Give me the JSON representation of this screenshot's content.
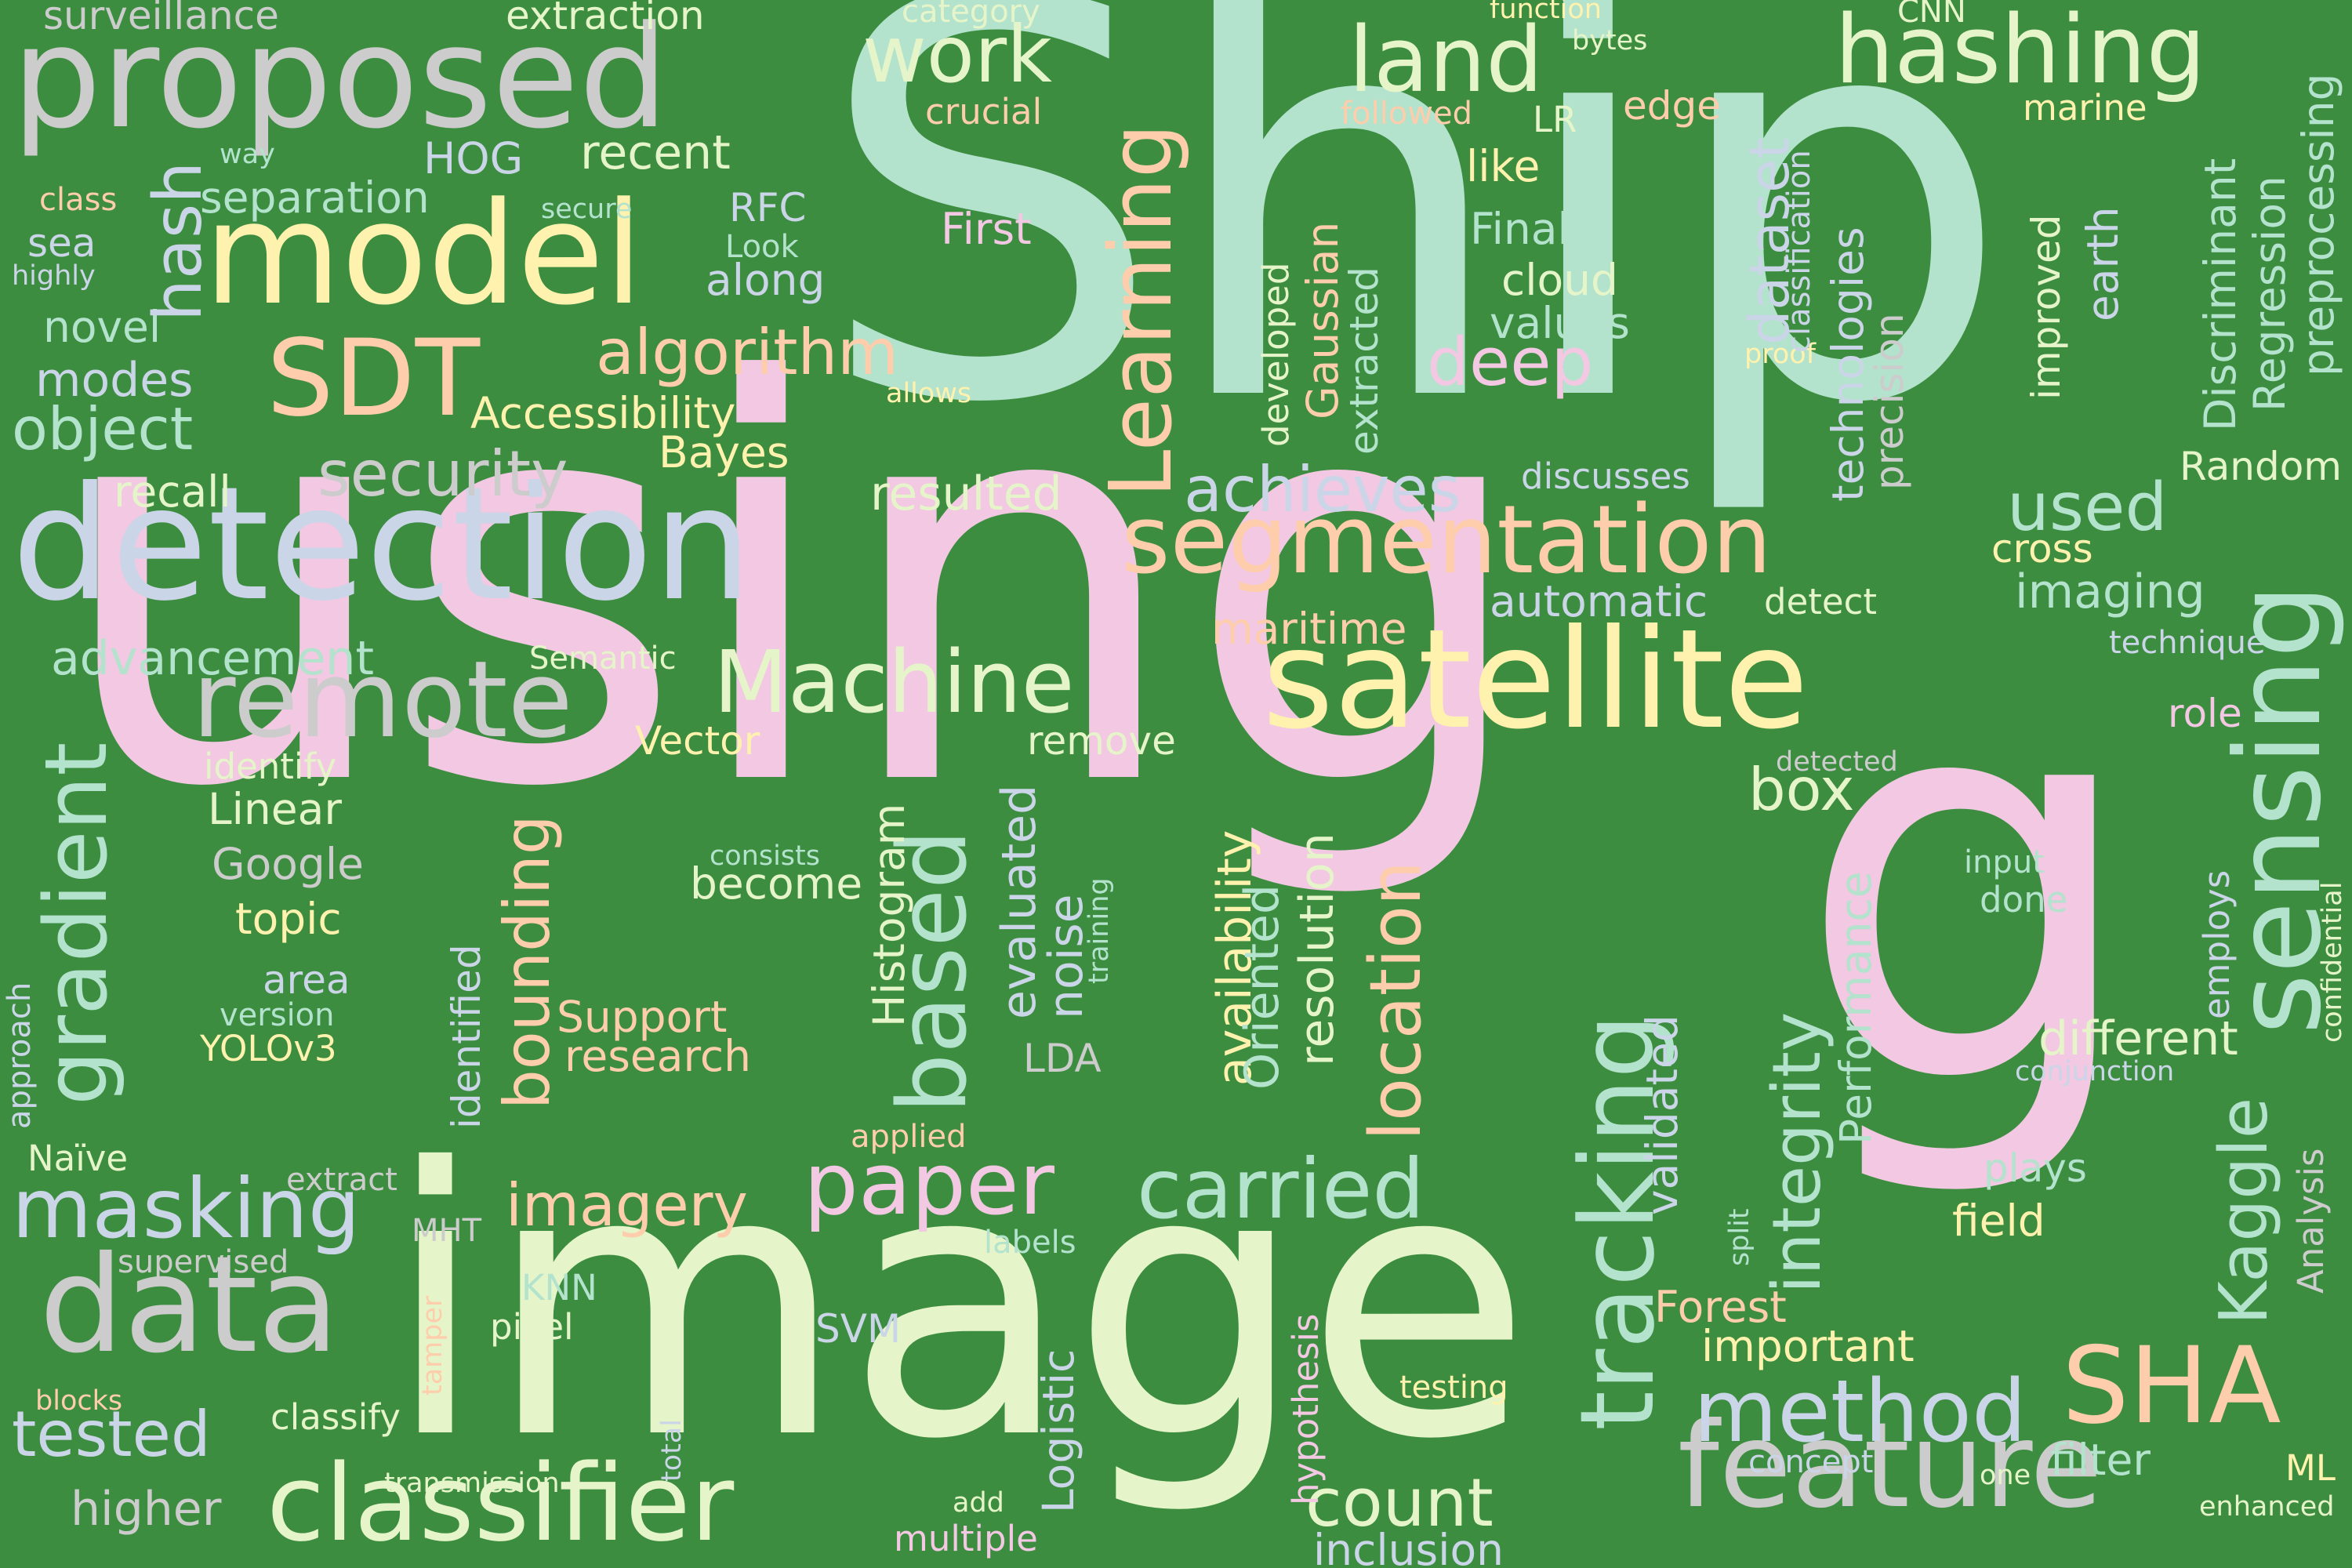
{
  "background_color": "#3d8d40",
  "words": [
    {
      "text": "using",
      "color": "#f2c8e2"
    },
    {
      "text": "Ship",
      "color": "#b3e2cd"
    },
    {
      "text": "image",
      "color": "#e6f5c9"
    },
    {
      "text": "g",
      "color": "#f2c8e2"
    },
    {
      "text": "detection",
      "color": "#cbd5e8"
    },
    {
      "text": "proposed",
      "color": "#cccccc"
    },
    {
      "text": "model",
      "color": "#fff2ae"
    },
    {
      "text": "satellite",
      "color": "#fff2ae"
    },
    {
      "text": "feature",
      "color": "#cccccc"
    },
    {
      "text": "data",
      "color": "#cccccc"
    },
    {
      "text": "tracking",
      "color": "#b3e2cd"
    },
    {
      "text": "segmentation",
      "color": "#fdcdac"
    },
    {
      "text": "remote",
      "color": "#cccccc"
    },
    {
      "text": "sensing",
      "color": "#b3e2cd"
    },
    {
      "text": "classifier",
      "color": "#e6f5c9"
    },
    {
      "text": "SHA",
      "color": "#fdcdac"
    },
    {
      "text": "hashing",
      "color": "#e6f5c9"
    },
    {
      "text": "SDT",
      "color": "#fdcdac"
    },
    {
      "text": "Machine",
      "color": "#e6f5c9"
    },
    {
      "text": "carried",
      "color": "#b3e2cd"
    },
    {
      "text": "method",
      "color": "#cbd5e8"
    },
    {
      "text": "masking",
      "color": "#cbd5e8"
    },
    {
      "text": "paper",
      "color": "#f2c8e2"
    },
    {
      "text": "based",
      "color": "#b3e2cd"
    },
    {
      "text": "land",
      "color": "#e6f5c9"
    },
    {
      "text": "work",
      "color": "#e6f5c9"
    },
    {
      "text": "algorithm",
      "color": "#fdcdac"
    },
    {
      "text": "deep",
      "color": "#f2c8e2"
    },
    {
      "text": "achieves",
      "color": "#cbd5e8"
    },
    {
      "text": "gradient",
      "color": "#b3e2cd"
    },
    {
      "text": "Learning",
      "color": "#fdcdac"
    },
    {
      "text": "security",
      "color": "#cccccc"
    },
    {
      "text": "object",
      "color": "#b3e2cd"
    },
    {
      "text": "imagery",
      "color": "#fdcdac"
    },
    {
      "text": "tested",
      "color": "#cbd5e8"
    },
    {
      "text": "count",
      "color": "#e6f5c9"
    },
    {
      "text": "location",
      "color": "#fdcdac"
    },
    {
      "text": "bounding",
      "color": "#fdcdac"
    },
    {
      "text": "integrity",
      "color": "#b3e2cd"
    },
    {
      "text": "used",
      "color": "#b3e2cd"
    },
    {
      "text": "box",
      "color": "#e6f5c9"
    },
    {
      "text": "hash",
      "color": "#cbd5e8"
    },
    {
      "text": "Kaggle",
      "color": "#b3e2cd"
    },
    {
      "text": "dataset",
      "color": "#cbd5e8"
    },
    {
      "text": "higher",
      "color": "#cccccc"
    },
    {
      "text": "advancement",
      "color": "#b3e2cd"
    },
    {
      "text": "modes",
      "color": "#cbd5e8"
    },
    {
      "text": "surveillance",
      "color": "#cccccc"
    },
    {
      "text": "extraction",
      "color": "#e6f5c9"
    },
    {
      "text": "HOG",
      "color": "#cbd5e8"
    },
    {
      "text": "recent",
      "color": "#e6f5c9"
    },
    {
      "text": "separation",
      "color": "#b3e2cd"
    },
    {
      "text": "sea",
      "color": "#cbd5e8"
    },
    {
      "text": "along",
      "color": "#cbd5e8"
    },
    {
      "text": "novel",
      "color": "#b3e2cd"
    },
    {
      "text": "recall",
      "color": "#e6f5c9"
    },
    {
      "text": "Accessibility",
      "color": "#fff2ae"
    },
    {
      "text": "Bayes",
      "color": "#fff2ae"
    },
    {
      "text": "resulted",
      "color": "#e6f5c9"
    },
    {
      "text": "First",
      "color": "#f2c8e2"
    },
    {
      "text": "RFC",
      "color": "#cbd5e8"
    },
    {
      "text": "Look",
      "color": "#b3e2cd"
    },
    {
      "text": "cloud",
      "color": "#e6f5c9"
    },
    {
      "text": "Finally",
      "color": "#b3e2cd"
    },
    {
      "text": "values",
      "color": "#b3e2cd"
    },
    {
      "text": "like",
      "color": "#fff2ae"
    },
    {
      "text": "edge",
      "color": "#fdcdac"
    },
    {
      "text": "LR",
      "color": "#e6f5c9"
    },
    {
      "text": "followed",
      "color": "#fdcdac"
    },
    {
      "text": "crucial",
      "color": "#fdcdac"
    },
    {
      "text": "function",
      "color": "#fff2ae"
    },
    {
      "text": "bytes",
      "color": "#e6f5c9"
    },
    {
      "text": "CNN",
      "color": "#e6f5c9"
    },
    {
      "text": "marine",
      "color": "#fff2ae"
    },
    {
      "text": "category",
      "color": "#e6f5c9"
    },
    {
      "text": "way",
      "color": "#b3e2cd"
    },
    {
      "text": "class",
      "color": "#fdcdac"
    },
    {
      "text": "secure",
      "color": "#b3e2cd"
    },
    {
      "text": "highly",
      "color": "#cbd5e8"
    },
    {
      "text": "allows",
      "color": "#fff2ae"
    },
    {
      "text": "proof",
      "color": "#fff2ae"
    },
    {
      "text": "discusses",
      "color": "#cbd5e8"
    },
    {
      "text": "automatic",
      "color": "#cbd5e8"
    },
    {
      "text": "detect",
      "color": "#e6f5c9"
    },
    {
      "text": "maritime",
      "color": "#fdcdac"
    },
    {
      "text": "cross",
      "color": "#fff2ae"
    },
    {
      "text": "imaging",
      "color": "#b3e2cd"
    },
    {
      "text": "technique",
      "color": "#cbd5e8"
    },
    {
      "text": "role",
      "color": "#f2c8e2"
    },
    {
      "text": "Random",
      "color": "#e6f5c9"
    },
    {
      "text": "Semantic",
      "color": "#e6f5c9"
    },
    {
      "text": "Vector",
      "color": "#fff2ae"
    },
    {
      "text": "remove",
      "color": "#e6f5c9"
    },
    {
      "text": "identify",
      "color": "#e6f5c9"
    },
    {
      "text": "Linear",
      "color": "#e6f5c9"
    },
    {
      "text": "Google",
      "color": "#cccccc"
    },
    {
      "text": "topic",
      "color": "#fff2ae"
    },
    {
      "text": "area",
      "color": "#cbd5e8"
    },
    {
      "text": "version",
      "color": "#b3e2cd"
    },
    {
      "text": "YOLOv3",
      "color": "#fff2ae"
    },
    {
      "text": "Naïve",
      "color": "#e6f5c9"
    },
    {
      "text": "extract",
      "color": "#cccccc"
    },
    {
      "text": "supervised",
      "color": "#cccccc"
    },
    {
      "text": "MHT",
      "color": "#cccccc"
    },
    {
      "text": "KNN",
      "color": "#b3e2cd"
    },
    {
      "text": "pixel",
      "color": "#e6f5c9"
    },
    {
      "text": "SVM",
      "color": "#cbd5e8"
    },
    {
      "text": "blocks",
      "color": "#fdcdac"
    },
    {
      "text": "classify",
      "color": "#e6f5c9"
    },
    {
      "text": "transmission",
      "color": "#e6f5c9"
    },
    {
      "text": "add",
      "color": "#e6f5c9"
    },
    {
      "text": "multiple",
      "color": "#f2c8e2"
    },
    {
      "text": "inclusion",
      "color": "#cbd5e8"
    },
    {
      "text": "concept",
      "color": "#cbd5e8"
    },
    {
      "text": "one",
      "color": "#e6f5c9"
    },
    {
      "text": "filter",
      "color": "#b3e2cd"
    },
    {
      "text": "ML",
      "color": "#fff2ae"
    },
    {
      "text": "enhanced",
      "color": "#e6f5c9"
    },
    {
      "text": "important",
      "color": "#fff2ae"
    },
    {
      "text": "Forest",
      "color": "#fdcdac"
    },
    {
      "text": "testing",
      "color": "#fff2ae"
    },
    {
      "text": "field",
      "color": "#fff2ae"
    },
    {
      "text": "plays",
      "color": "#b3e2cd"
    },
    {
      "text": "conjunction",
      "color": "#cbd5e8"
    },
    {
      "text": "different",
      "color": "#e6f5c9"
    },
    {
      "text": "input",
      "color": "#b3e2cd"
    },
    {
      "text": "done",
      "color": "#b3e2cd"
    },
    {
      "text": "detected",
      "color": "#cccccc"
    },
    {
      "text": "consists",
      "color": "#b3e2cd"
    },
    {
      "text": "become",
      "color": "#e6f5c9"
    },
    {
      "text": "Support",
      "color": "#fdcdac"
    },
    {
      "text": "research",
      "color": "#fdcdac"
    },
    {
      "text": "LDA",
      "color": "#cccccc"
    },
    {
      "text": "applied",
      "color": "#fdcdac"
    },
    {
      "text": "labels",
      "color": "#b3e2cd"
    },
    {
      "text": "Histogram",
      "color": "#e6f5c9"
    },
    {
      "text": "evaluated",
      "color": "#cbd5e8"
    },
    {
      "text": "noise",
      "color": "#cbd5e8"
    },
    {
      "text": "training",
      "color": "#b3e2cd"
    },
    {
      "text": "availability",
      "color": "#fff2ae"
    },
    {
      "text": "Oriented",
      "color": "#b3e2cd"
    },
    {
      "text": "resolution",
      "color": "#e6f5c9"
    },
    {
      "text": "identified",
      "color": "#cbd5e8"
    },
    {
      "text": "validated",
      "color": "#cbd5e8"
    },
    {
      "text": "Performance",
      "color": "#b3e2cd"
    },
    {
      "text": "Logistic",
      "color": "#cbd5e8"
    },
    {
      "text": "hypothesis",
      "color": "#f2c8e2"
    },
    {
      "text": "total",
      "color": "#cbd5e8"
    },
    {
      "text": "tamper",
      "color": "#fdcdac"
    },
    {
      "text": "approach",
      "color": "#cbd5e8"
    },
    {
      "text": "split",
      "color": "#b3e2cd"
    },
    {
      "text": "employs",
      "color": "#cbd5e8"
    },
    {
      "text": "confidential",
      "color": "#e6f5c9"
    },
    {
      "text": "Analysis",
      "color": "#cccccc"
    },
    {
      "text": "developed",
      "color": "#e6f5c9"
    },
    {
      "text": "Gaussian",
      "color": "#fdcdac"
    },
    {
      "text": "extracted",
      "color": "#b3e2cd"
    },
    {
      "text": "technologies",
      "color": "#cbd5e8"
    },
    {
      "text": "precision",
      "color": "#cccccc"
    },
    {
      "text": "classification",
      "color": "#cbd5e8"
    },
    {
      "text": "improved",
      "color": "#e6f5c9"
    },
    {
      "text": "earth",
      "color": "#cbd5e8"
    },
    {
      "text": "Discriminant",
      "color": "#b3e2cd"
    },
    {
      "text": "Regression",
      "color": "#b3e2cd"
    },
    {
      "text": "preprocessing",
      "color": "#b3e2cd"
    }
  ]
}
